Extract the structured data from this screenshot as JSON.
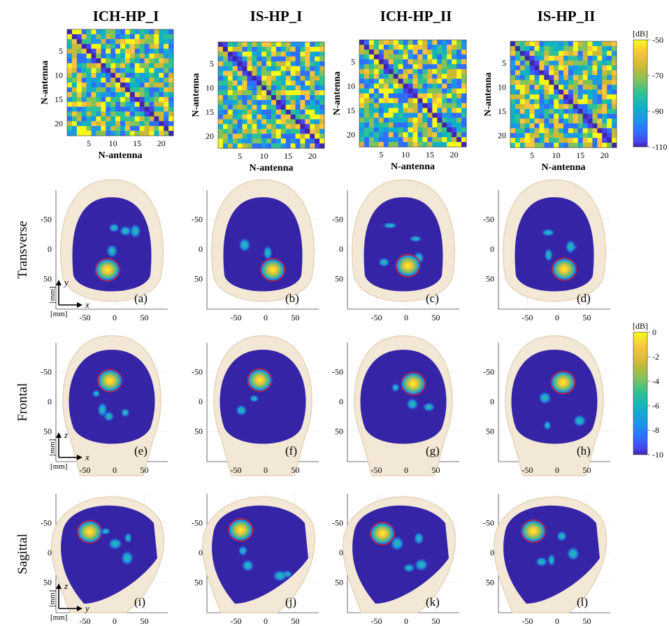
{
  "columns": [
    "ICH-HP_I",
    "IS-HP_I",
    "ICH-HP_II",
    "IS-HP_II"
  ],
  "rows": [
    "Transverse",
    "Frontal",
    "Sagittal"
  ],
  "matrix_axis_label": "N-antenna",
  "matrix_ticks": [
    "5",
    "10",
    "15",
    "20"
  ],
  "image_ticks": [
    "-50",
    "0",
    "50"
  ],
  "panel_labels": [
    "(a)",
    "(b)",
    "(c)",
    "(d)",
    "(e)",
    "(f)",
    "(g)",
    "(h)",
    "(i)",
    "(j)",
    "(k)",
    "(l)"
  ],
  "unit_mm": "[mm]",
  "axis_letters": {
    "transverse": [
      "x",
      "y"
    ],
    "frontal": [
      "x",
      "z"
    ],
    "sagittal": [
      "y",
      "z"
    ]
  },
  "colorbar_top": {
    "unit": "[dB]",
    "ticks": [
      "-50",
      "-70",
      "-90",
      "-110"
    ]
  },
  "colorbar_bottom": {
    "unit": "[dB]",
    "ticks": [
      "0",
      "-2",
      "-4",
      "-6",
      "-8",
      "-10"
    ]
  },
  "colors": {
    "parula": [
      "#3e26a8",
      "#4743f0",
      "#2f6ffe",
      "#1d96e8",
      "#10b2c4",
      "#2dc194",
      "#80c35b",
      "#cdb938",
      "#fbc43c",
      "#f9f918"
    ],
    "background_dark": "#3524a6",
    "head_tint": "#f3e7d5",
    "marker": "#e01a1a"
  }
}
